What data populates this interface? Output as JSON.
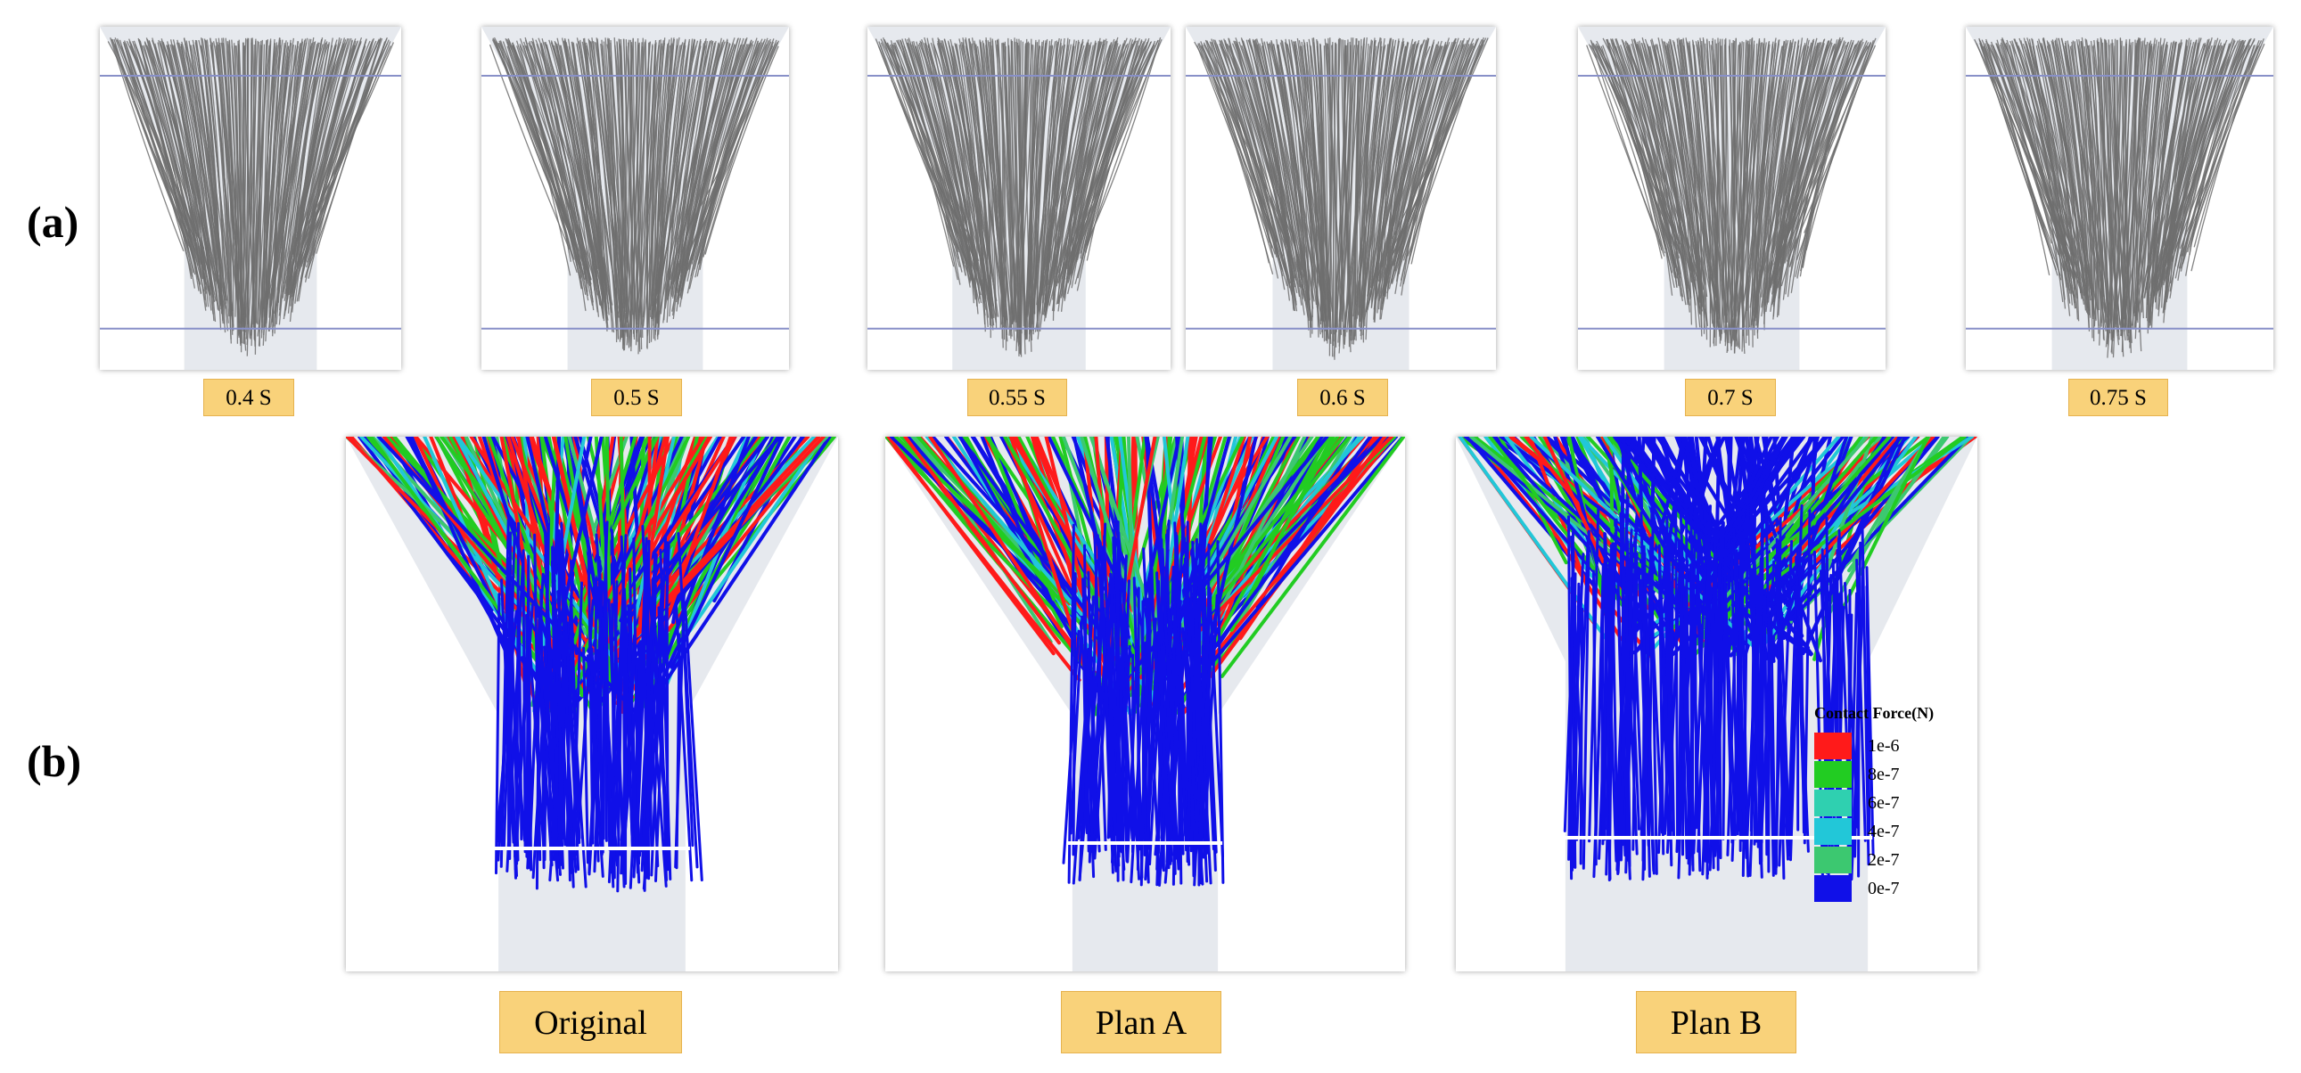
{
  "row_labels": {
    "a": "(a)",
    "b": "(b)"
  },
  "row_a": {
    "frames": [
      {
        "label": "0.4 S"
      },
      {
        "label": "0.5 S"
      },
      {
        "label": "0.55 S"
      },
      {
        "label": "0.6 S"
      },
      {
        "label": "0.7 S"
      },
      {
        "label": "0.75 S"
      }
    ]
  },
  "row_b": {
    "frames": [
      {
        "label": "Original"
      },
      {
        "label": "Plan A"
      },
      {
        "label": "Plan B"
      }
    ]
  },
  "legend": {
    "title": "Contact Force(N)",
    "items": [
      {
        "label": "1e-6",
        "color": "#ff1a1a"
      },
      {
        "label": "8e-7",
        "color": "#22cc22"
      },
      {
        "label": "6e-7",
        "color": "#2fd0b0"
      },
      {
        "label": "4e-7",
        "color": "#22c7d8"
      },
      {
        "label": "2e-7",
        "color": "#3cc870"
      },
      {
        "label": "0e-7",
        "color": "#1010e8"
      }
    ]
  },
  "colors": {
    "gray_fiber": "#6f6f6f",
    "outline": "#8890c8",
    "tag_fill": "#f9d27a",
    "funnel_shade": "#e6e9ee"
  }
}
